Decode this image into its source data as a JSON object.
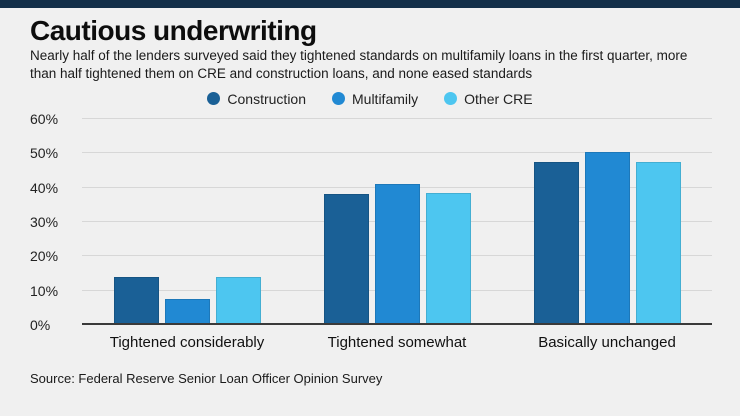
{
  "page": {
    "title": "Cautious underwriting",
    "subtitle": "Nearly half of the lenders surveyed said they tightened standards on multifamily loans in the first quarter, more than half tightened them on CRE and construction loans, and none eased standards",
    "source": "Source: Federal Reserve Senior Loan Officer Opinion Survey"
  },
  "colors": {
    "top_strip": "#132f49",
    "construction": "#1a6096",
    "multifamily": "#2189d3",
    "other_cre": "#4dc6f0"
  },
  "chart_data": {
    "type": "bar",
    "title": "Cautious underwriting",
    "categories": [
      "Tightened considerably",
      "Tightened somewhat",
      "Basically unchanged"
    ],
    "series": [
      {
        "name": "Construction",
        "color": "#1a6096",
        "values": [
          14,
          38,
          47.5
        ]
      },
      {
        "name": "Multifamily",
        "color": "#2189d3",
        "values": [
          7.5,
          41,
          50.5
        ]
      },
      {
        "name": "Other CRE",
        "color": "#4dc6f0",
        "values": [
          14,
          38.5,
          47.5
        ]
      }
    ],
    "ylim": [
      0,
      60
    ],
    "ytick_step": 10,
    "ytick_labels": [
      "0%",
      "10%",
      "20%",
      "30%",
      "40%",
      "50%",
      "60%"
    ],
    "grid": true,
    "legend_position": "top-center"
  }
}
